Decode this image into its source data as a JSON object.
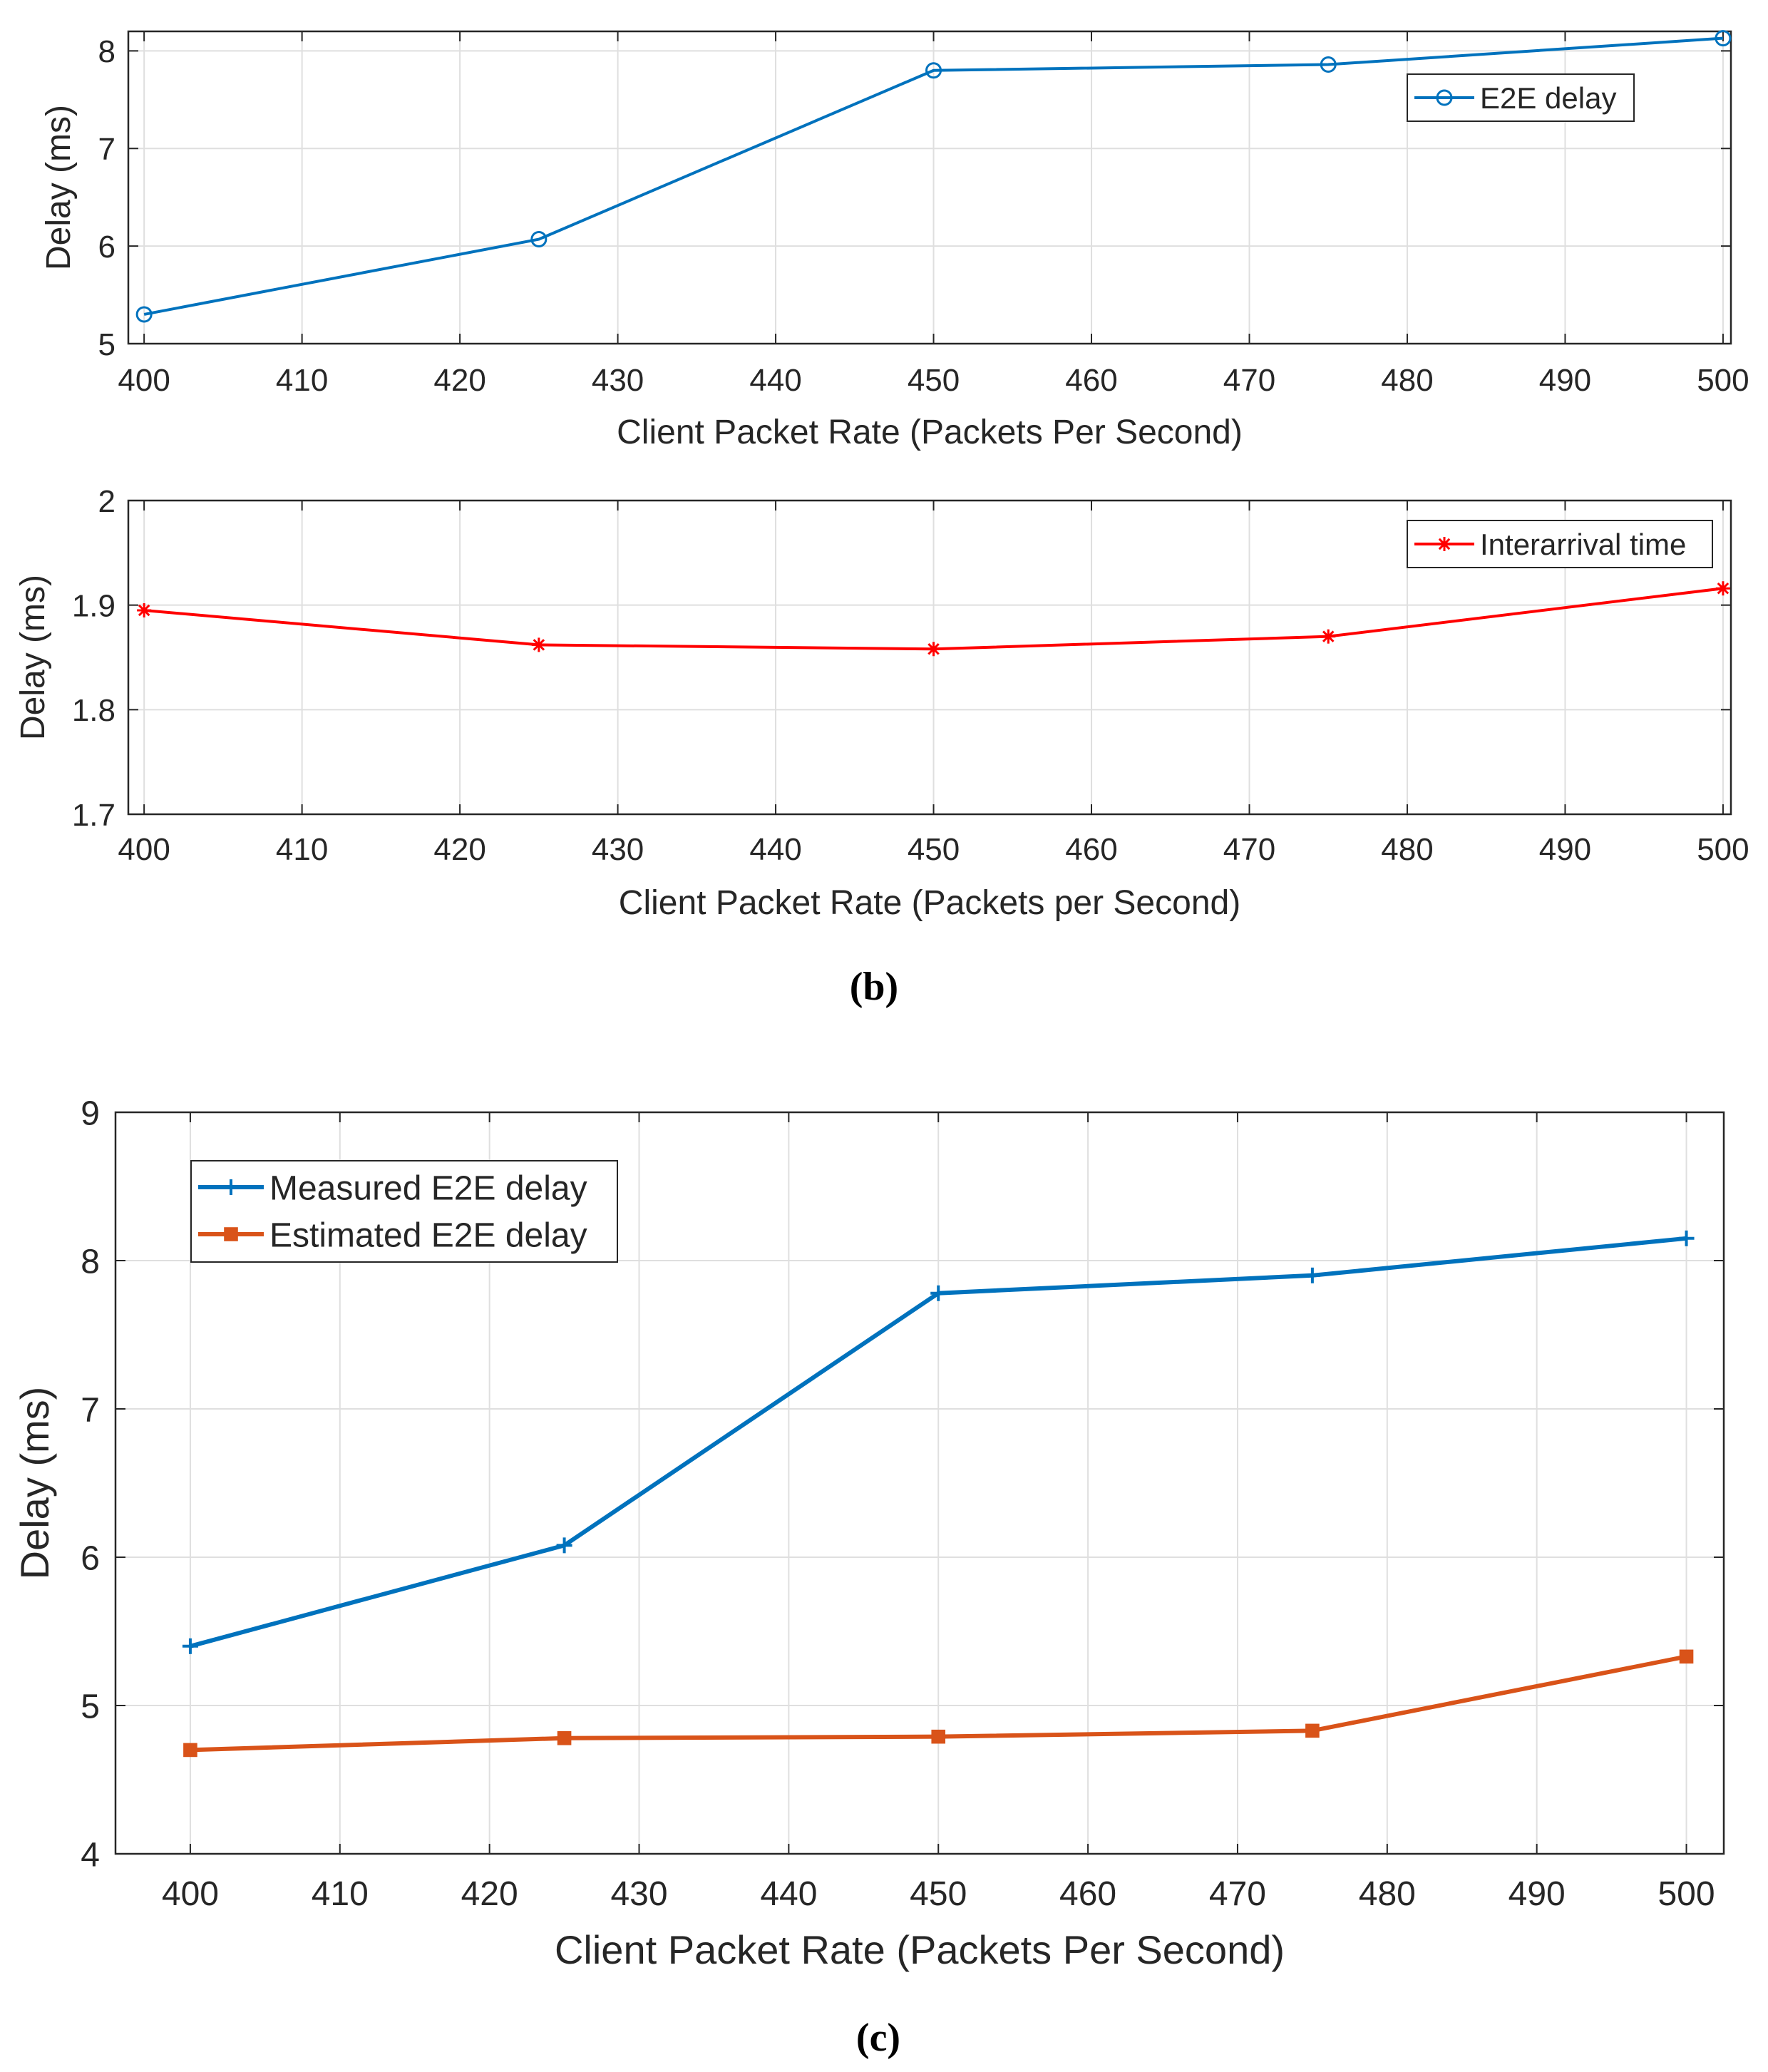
{
  "chart_data": [
    {
      "type": "line",
      "panel": "b-top",
      "x": [
        400,
        425,
        450,
        475,
        500
      ],
      "series": [
        {
          "name": "E2E delay",
          "values": [
            5.3,
            6.07,
            7.8,
            7.86,
            8.13
          ],
          "color": "#0072BD",
          "marker": "circle"
        }
      ],
      "xlabel": "Client Packet Rate (Packets Per Second)",
      "ylabel": "Delay (ms)",
      "xlim": [
        399,
        500.5
      ],
      "ylim": [
        5,
        8.2
      ],
      "xticks": [
        "400",
        "410",
        "420",
        "430",
        "440",
        "450",
        "460",
        "470",
        "480",
        "490",
        "500"
      ],
      "yticks": [
        "5",
        "6",
        "7",
        "8"
      ],
      "grid": true,
      "legend_position": "top-right"
    },
    {
      "type": "line",
      "panel": "b-bottom",
      "x": [
        400,
        425,
        450,
        475,
        500
      ],
      "series": [
        {
          "name": "Interarrival time",
          "values": [
            1.895,
            1.862,
            1.858,
            1.87,
            1.916
          ],
          "color": "#FF0000",
          "marker": "asterisk"
        }
      ],
      "xlabel": "Client Packet Rate (Packets per Second)",
      "ylabel": "Delay (ms)",
      "xlim": [
        399,
        500.5
      ],
      "ylim": [
        1.7,
        2.0
      ],
      "xticks": [
        "400",
        "410",
        "420",
        "430",
        "440",
        "450",
        "460",
        "470",
        "480",
        "490",
        "500"
      ],
      "yticks": [
        "1.7",
        "1.8",
        "1.9",
        "2"
      ],
      "grid": true,
      "legend_position": "top-right"
    },
    {
      "type": "line",
      "panel": "c",
      "x": [
        400,
        425,
        450,
        475,
        500
      ],
      "series": [
        {
          "name": "Measured E2E delay",
          "values": [
            5.4,
            6.08,
            7.78,
            7.9,
            8.15
          ],
          "color": "#0072BD",
          "marker": "plus"
        },
        {
          "name": "Estimated E2E delay",
          "values": [
            4.7,
            4.78,
            4.79,
            4.83,
            5.33
          ],
          "color": "#D95319",
          "marker": "square"
        }
      ],
      "xlabel": "Client Packet Rate (Packets Per Second)",
      "ylabel": "Delay (ms)",
      "xlim": [
        395,
        502.5
      ],
      "ylim": [
        4,
        9
      ],
      "xticks": [
        "400",
        "410",
        "420",
        "430",
        "440",
        "450",
        "460",
        "470",
        "480",
        "490",
        "500"
      ],
      "yticks": [
        "4",
        "5",
        "6",
        "7",
        "8",
        "9"
      ],
      "grid": true,
      "legend_position": "top-left"
    }
  ],
  "captions": {
    "b": "(b)",
    "c": "(c)"
  }
}
